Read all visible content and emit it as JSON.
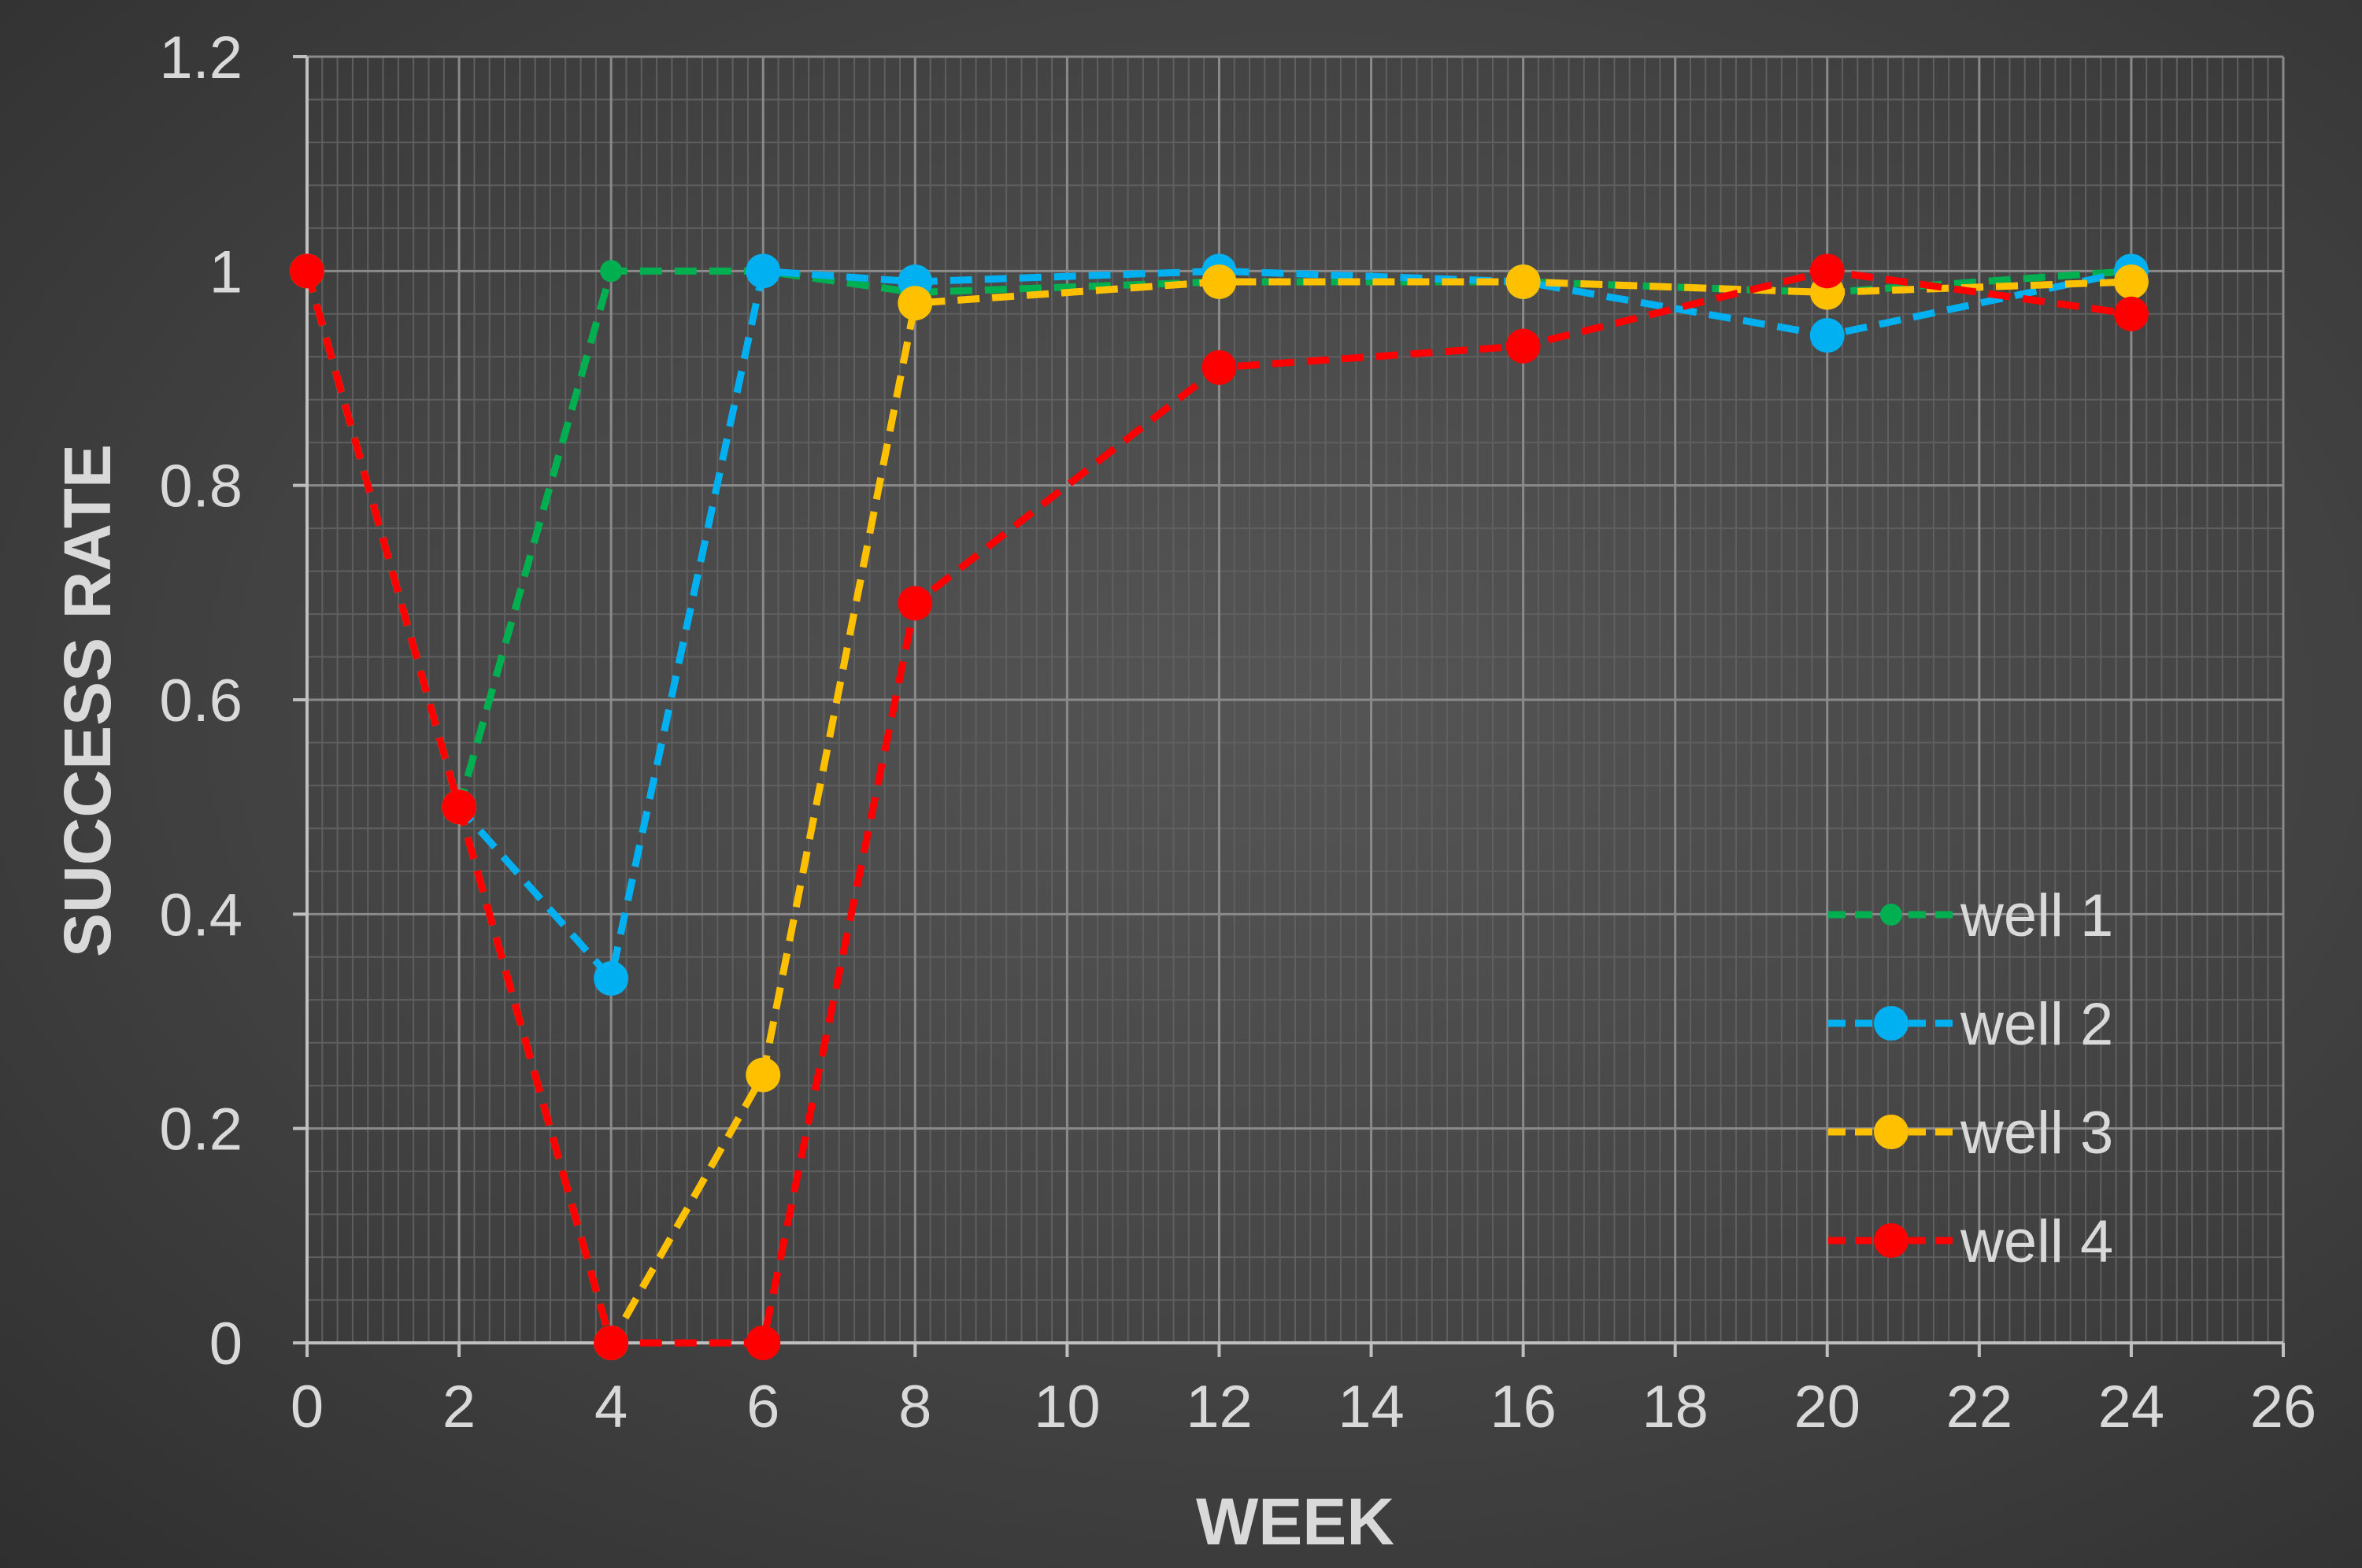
{
  "chart_data": {
    "type": "line",
    "xlabel": "WEEK",
    "ylabel": "SUCCESS  RATE",
    "xlim": [
      0,
      26
    ],
    "ylim": [
      0,
      1.2
    ],
    "x_ticks": [
      "0",
      "2",
      "4",
      "6",
      "8",
      "10",
      "12",
      "14",
      "16",
      "18",
      "20",
      "22",
      "24",
      "26"
    ],
    "y_ticks": [
      "0",
      "0.2",
      "0.4",
      "0.6",
      "0.8",
      "1",
      "1.2"
    ],
    "grid": true,
    "legend_position": "bottom-right",
    "series": [
      {
        "name": "well 1",
        "color": "#00b050",
        "marker_size": "small",
        "x": [
          0,
          2,
          4,
          6,
          8,
          12,
          16,
          20,
          24
        ],
        "y": [
          1.0,
          0.5,
          1.0,
          1.0,
          0.98,
          0.99,
          0.99,
          0.98,
          1.0
        ]
      },
      {
        "name": "well 2",
        "color": "#00b0f0",
        "marker_size": "large",
        "x": [
          0,
          2,
          4,
          6,
          8,
          12,
          16,
          20,
          24
        ],
        "y": [
          1.0,
          0.5,
          0.34,
          1.0,
          0.99,
          1.0,
          0.99,
          0.94,
          1.0
        ]
      },
      {
        "name": "well 3",
        "color": "#ffc000",
        "marker_size": "large",
        "x": [
          0,
          2,
          4,
          6,
          8,
          12,
          16,
          20,
          24
        ],
        "y": [
          1.0,
          0.5,
          0.0,
          0.25,
          0.97,
          0.99,
          0.99,
          0.98,
          0.99
        ]
      },
      {
        "name": "well 4",
        "color": "#ff0000",
        "marker_size": "large",
        "x": [
          0,
          2,
          4,
          6,
          8,
          12,
          16,
          20,
          24
        ],
        "y": [
          1.0,
          0.5,
          0.0,
          0.0,
          0.69,
          0.91,
          0.93,
          1.0,
          0.96
        ]
      }
    ]
  }
}
